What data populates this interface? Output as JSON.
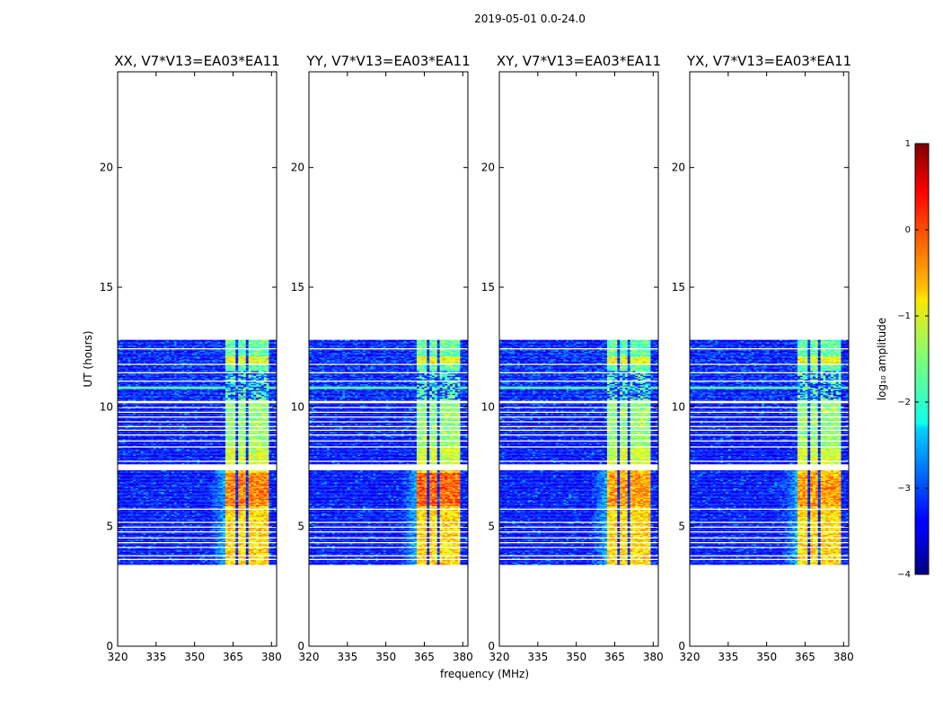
{
  "figure": {
    "suptitle": "2019-05-01 0.0-24.0"
  },
  "chart_data": [
    {
      "type": "heatmap",
      "title": "XX, V7*V13=EA03*EA11",
      "xlabel": "",
      "ylabel": "UT (hours)",
      "xlim": [
        320,
        382
      ],
      "ylim": [
        0,
        24
      ],
      "x_ticks": [
        "320",
        "335",
        "350",
        "365",
        "380"
      ],
      "y_ticks": [
        "0",
        "5",
        "10",
        "15",
        "20"
      ],
      "data_time_range": [
        3.4,
        12.8
      ],
      "peak_log10_amplitude": 0.3
    },
    {
      "type": "heatmap",
      "title": "YY, V7*V13=EA03*EA11",
      "xlabel": "",
      "ylabel": "",
      "xlim": [
        320,
        382
      ],
      "ylim": [
        0,
        24
      ],
      "x_ticks": [
        "320",
        "335",
        "350",
        "365",
        "380"
      ],
      "y_ticks": [
        "0",
        "5",
        "10",
        "15",
        "20"
      ],
      "data_time_range": [
        3.4,
        12.8
      ],
      "peak_log10_amplitude": 0.6
    },
    {
      "type": "heatmap",
      "title": "XY, V7*V13=EA03*EA11",
      "xlabel": "frequency (MHz)",
      "ylabel": "",
      "xlim": [
        320,
        382
      ],
      "ylim": [
        0,
        24
      ],
      "x_ticks": [
        "320",
        "335",
        "350",
        "365",
        "380"
      ],
      "y_ticks": [
        "0",
        "5",
        "10",
        "15",
        "20"
      ],
      "data_time_range": [
        3.4,
        12.8
      ],
      "peak_log10_amplitude": 0.0
    },
    {
      "type": "heatmap",
      "title": "YX, V7*V13=EA03*EA11",
      "xlabel": "",
      "ylabel": "",
      "xlim": [
        320,
        382
      ],
      "ylim": [
        0,
        24
      ],
      "x_ticks": [
        "320",
        "335",
        "350",
        "365",
        "380"
      ],
      "y_ticks": [
        "0",
        "5",
        "10",
        "15",
        "20"
      ],
      "data_time_range": [
        3.4,
        12.8
      ],
      "peak_log10_amplitude": 0.0
    }
  ],
  "colorbar": {
    "label": "log₁₀ amplitude",
    "range": [
      -4,
      1
    ],
    "tick_labels": [
      "1",
      "0",
      "−1",
      "−2",
      "−3",
      "−4"
    ],
    "tick_values": [
      1,
      0,
      -1,
      -2,
      -3,
      -4
    ],
    "colormap": "jet"
  }
}
